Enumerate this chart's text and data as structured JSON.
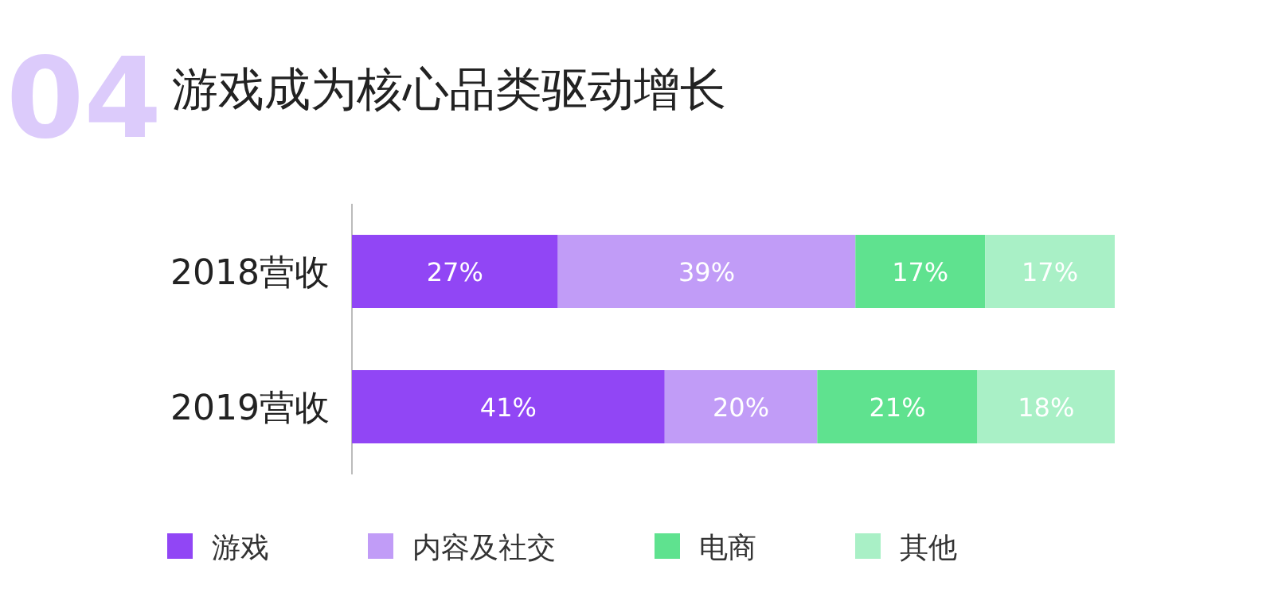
{
  "chart_data": {
    "type": "bar",
    "orientation": "horizontal",
    "stacked": true,
    "title": "游戏成为核心品类驱动增长",
    "annotations": [
      "04"
    ],
    "legend": "bottom",
    "categories": [
      "2018营收",
      "2019营收"
    ],
    "series": [
      {
        "name": "游戏",
        "color": "#9146f5",
        "values": [
          27,
          41
        ],
        "value_labels": [
          "27%",
          "41%"
        ]
      },
      {
        "name": "内容及社交",
        "color": "#c19cf7",
        "values": [
          39,
          20
        ],
        "value_labels": [
          "39%",
          "20%"
        ]
      },
      {
        "name": "电商",
        "color": "#5fe28f",
        "values": [
          17,
          21
        ],
        "value_labels": [
          "17%",
          "21%"
        ]
      },
      {
        "name": "其他",
        "color": "#a9f0c6",
        "values": [
          17,
          18
        ],
        "value_labels": [
          "17%",
          "18%"
        ]
      }
    ]
  }
}
